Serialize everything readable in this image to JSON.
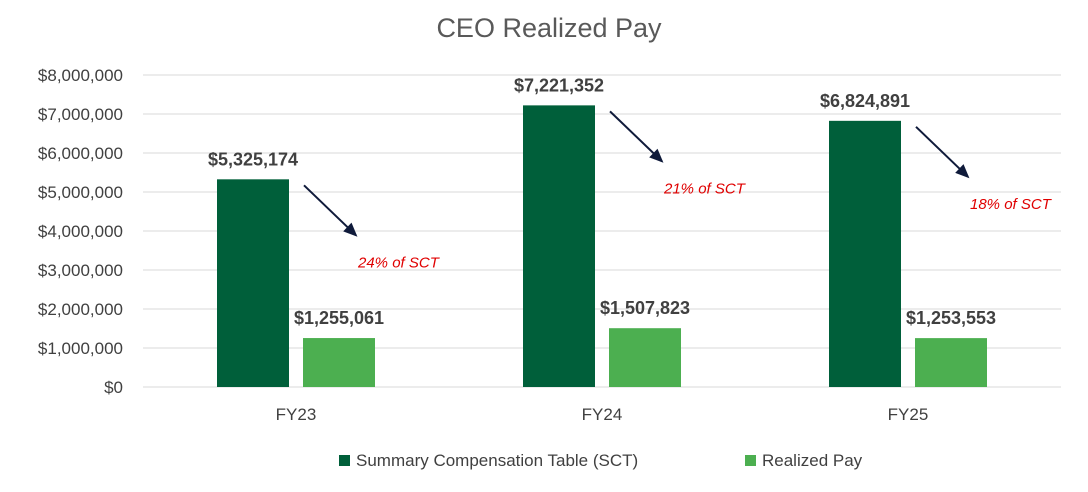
{
  "chart_data": {
    "type": "bar",
    "title": "CEO Realized Pay",
    "categories": [
      "FY23",
      "FY24",
      "FY25"
    ],
    "series": [
      {
        "name": "Summary Compensation Table (SCT)",
        "values": [
          5325174,
          7221352,
          6824891
        ],
        "labels": [
          "$5,325,174",
          "$7,221,352",
          "$6,824,891"
        ],
        "color": "#005f3a"
      },
      {
        "name": "Realized Pay",
        "values": [
          1255061,
          1507823,
          1253553
        ],
        "labels": [
          "$1,255,061",
          "$1,507,823",
          "$1,253,553"
        ],
        "color": "#4caf50"
      }
    ],
    "annotations": [
      "24% of SCT",
      "21% of SCT",
      "18% of SCT"
    ],
    "ylim": [
      0,
      8000000
    ],
    "yticks": [
      0,
      1000000,
      2000000,
      3000000,
      4000000,
      5000000,
      6000000,
      7000000,
      8000000
    ],
    "ytick_labels": [
      "$0",
      "$1,000,000",
      "$2,000,000",
      "$3,000,000",
      "$4,000,000",
      "$5,000,000",
      "$6,000,000",
      "$7,000,000",
      "$8,000,000"
    ],
    "grid": true,
    "legend_position": "bottom"
  }
}
